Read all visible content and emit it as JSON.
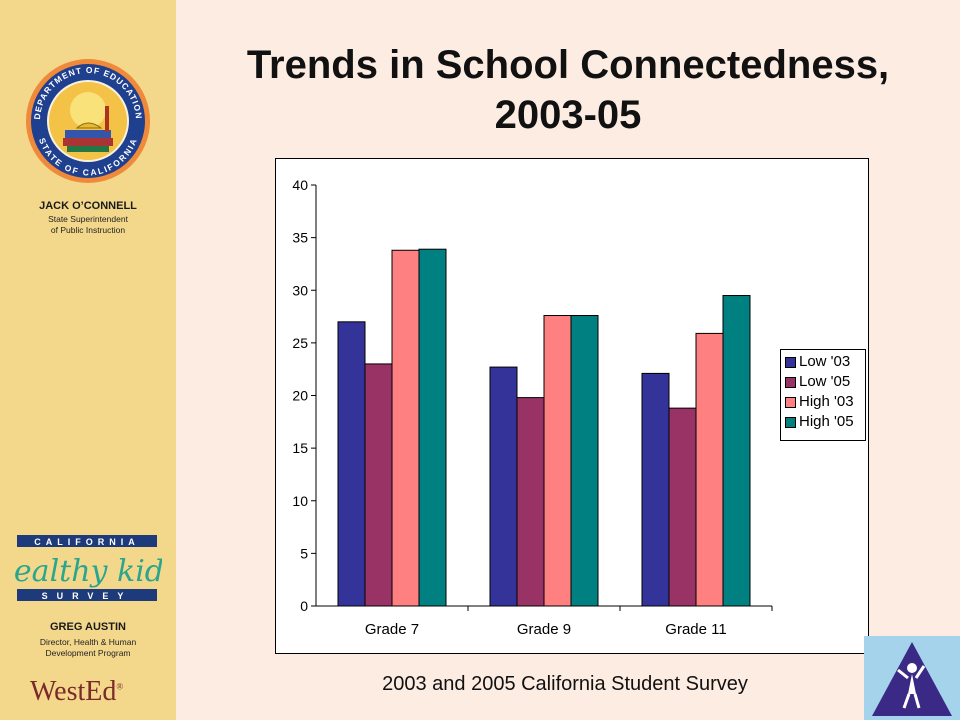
{
  "sidebar": {
    "superintendent_name": "JACK O’CONNELL",
    "superintendent_title_1": "State Superintendent",
    "superintendent_title_2": "of Public Instruction",
    "director_name": "GREG AUSTIN",
    "director_title_1": "Director, Health & Human",
    "director_title_2": "Development Program",
    "chks_top": "CALIFORNIA",
    "chks_middle": "healthy kids",
    "chks_bottom": "SURVEY",
    "wested": "WestEd",
    "wested_mark": "®",
    "seal_top_text": "DEPARTMENT OF EDUCATION",
    "seal_bottom_text": "STATE OF CALIFORNIA"
  },
  "slide": {
    "title_line1": "Trends in School Connectedness,",
    "title_line2": "2003-05",
    "caption": "2003 and 2005 California Student Survey"
  },
  "colors": {
    "background": "#fdece2",
    "sidebar": "#f3d88c",
    "corner": "#a6d3ec"
  },
  "chart_data": {
    "type": "bar",
    "categories": [
      "Grade 7",
      "Grade 9",
      "Grade 11"
    ],
    "series": [
      {
        "name": "Low '03",
        "color": "#333399",
        "values": [
          27,
          22.7,
          22.1
        ]
      },
      {
        "name": "Low '05",
        "color": "#993366",
        "values": [
          23,
          19.8,
          18.8
        ]
      },
      {
        "name": "High '03",
        "color": "#ff8080",
        "values": [
          33.8,
          27.6,
          25.9
        ]
      },
      {
        "name": "High '05",
        "color": "#008080",
        "values": [
          33.9,
          27.6,
          29.5
        ]
      }
    ],
    "ylim": [
      0,
      40
    ],
    "yticks": [
      "0",
      "5",
      "10",
      "15",
      "20",
      "25",
      "30",
      "35",
      "40"
    ],
    "legend_position": "right",
    "grid": false
  }
}
